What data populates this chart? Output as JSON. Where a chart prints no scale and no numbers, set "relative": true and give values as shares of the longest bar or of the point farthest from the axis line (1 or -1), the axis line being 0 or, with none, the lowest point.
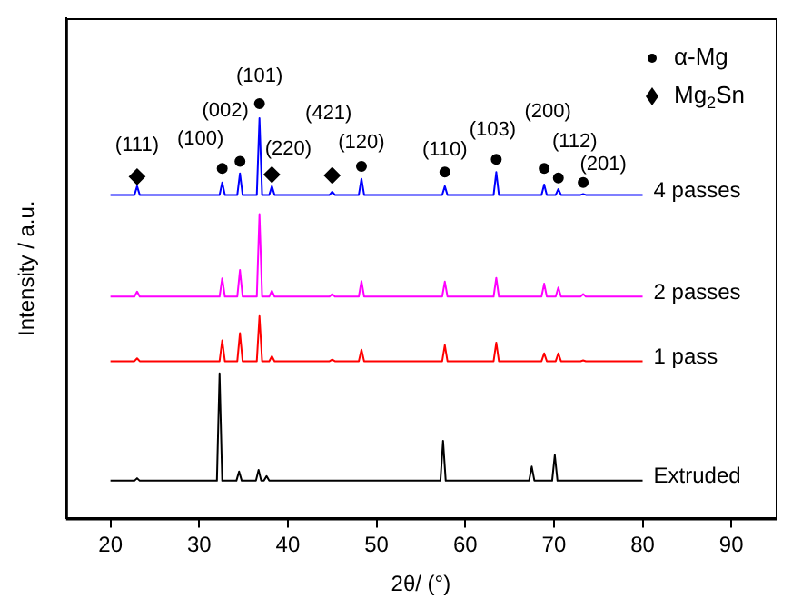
{
  "chart_data": {
    "type": "line",
    "relative": true,
    "xlabel": "2θ/ (°)",
    "ylabel": "Intensity / a.u.",
    "xlim": [
      15,
      95
    ],
    "xticks": [
      20,
      30,
      40,
      50,
      60,
      70,
      80,
      90
    ],
    "grid": false,
    "legend": "top right",
    "line_style": "solid",
    "series": [
      {
        "name": "Extruded",
        "color": "#000000",
        "x": [
          20,
          22.7,
          23,
          23.3,
          32,
          32.3,
          32.6,
          34.2,
          34.5,
          34.8,
          36.4,
          36.7,
          37,
          37.3,
          37.6,
          37.9,
          57.2,
          57.5,
          57.8,
          67.2,
          67.5,
          67.8,
          69.8,
          70.1,
          70.4,
          80
        ],
        "values": [
          0.091,
          0.091,
          0.097,
          0.091,
          0.091,
          0.35,
          0.091,
          0.091,
          0.113,
          0.091,
          0.091,
          0.117,
          0.091,
          0.091,
          0.102,
          0.091,
          0.091,
          0.187,
          0.091,
          0.091,
          0.125,
          0.091,
          0.091,
          0.153,
          0.091,
          0.091
        ]
      },
      {
        "name": "1 pass",
        "color": "#ff0000",
        "x": [
          20,
          22.7,
          23,
          23.3,
          32.3,
          32.6,
          32.9,
          34.3,
          34.6,
          34.9,
          36.5,
          36.8,
          37.1,
          37.9,
          38.2,
          38.5,
          44.7,
          45,
          45.3,
          48,
          48.3,
          48.6,
          57.4,
          57.7,
          58,
          63.2,
          63.5,
          63.8,
          68.6,
          68.9,
          69.2,
          70.2,
          70.5,
          70.8,
          73,
          73.3,
          73.6,
          80
        ],
        "values": [
          0.379,
          0.379,
          0.386,
          0.379,
          0.379,
          0.429,
          0.379,
          0.379,
          0.447,
          0.379,
          0.379,
          0.488,
          0.379,
          0.379,
          0.391,
          0.379,
          0.379,
          0.383,
          0.379,
          0.379,
          0.407,
          0.379,
          0.379,
          0.418,
          0.379,
          0.379,
          0.424,
          0.379,
          0.379,
          0.398,
          0.379,
          0.379,
          0.398,
          0.379,
          0.379,
          0.381,
          0.379,
          0.379
        ]
      },
      {
        "name": "2 passes",
        "color": "#ff00ff",
        "x": [
          20,
          22.7,
          23,
          23.3,
          32.3,
          32.6,
          32.9,
          34.3,
          34.6,
          34.9,
          36.5,
          36.8,
          37.1,
          37.9,
          38.2,
          38.5,
          44.7,
          45,
          45.3,
          48,
          48.3,
          48.6,
          57.4,
          57.7,
          58,
          63.2,
          63.5,
          63.8,
          68.6,
          68.9,
          69.2,
          70.2,
          70.5,
          70.8,
          73,
          73.3,
          73.6,
          80
        ],
        "values": [
          0.535,
          0.535,
          0.547,
          0.535,
          0.535,
          0.579,
          0.535,
          0.535,
          0.599,
          0.535,
          0.535,
          0.734,
          0.535,
          0.535,
          0.549,
          0.535,
          0.535,
          0.541,
          0.535,
          0.535,
          0.572,
          0.535,
          0.535,
          0.571,
          0.535,
          0.535,
          0.58,
          0.535,
          0.535,
          0.566,
          0.535,
          0.535,
          0.557,
          0.535,
          0.535,
          0.541,
          0.535,
          0.535
        ]
      },
      {
        "name": "4 passes",
        "color": "#0000ff",
        "x": [
          20,
          22.7,
          23,
          23.3,
          32.3,
          32.6,
          32.9,
          34.3,
          34.6,
          34.9,
          36.5,
          36.8,
          37.1,
          37.9,
          38.2,
          38.5,
          44.7,
          45,
          45.3,
          48,
          48.3,
          48.6,
          57.4,
          57.7,
          58,
          63.2,
          63.5,
          63.8,
          68.6,
          68.9,
          69.2,
          70.2,
          70.5,
          70.8,
          73,
          73.3,
          73.6,
          80
        ],
        "values": [
          0.78,
          0.78,
          0.801,
          0.78,
          0.78,
          0.81,
          0.78,
          0.78,
          0.832,
          0.78,
          0.78,
          0.965,
          0.78,
          0.78,
          0.801,
          0.78,
          0.78,
          0.788,
          0.78,
          0.78,
          0.819,
          0.78,
          0.78,
          0.801,
          0.78,
          0.78,
          0.835,
          0.78,
          0.78,
          0.805,
          0.78,
          0.78,
          0.794,
          0.78,
          0.78,
          0.782,
          0.78,
          0.78
        ]
      },
      {
        "name": "α-Mg",
        "type": "scatter",
        "marker": "circle",
        "color": "#000000",
        "x": [
          32.6,
          34.6,
          36.8,
          48.3,
          57.7,
          63.5,
          68.9,
          70.5,
          73.3
        ],
        "values": [
          0.844,
          0.861,
          1.0,
          0.849,
          0.835,
          0.866,
          0.844,
          0.821,
          0.81
        ]
      },
      {
        "name": "Mg$_{2}$Sn",
        "type": "scatter",
        "marker": "diamond",
        "color": "#000000",
        "x": [
          23,
          38.2,
          45
        ],
        "values": [
          0.824,
          0.829,
          0.827
        ]
      }
    ],
    "annotations": [
      "(111)",
      "(100)",
      "(002)",
      "(101)",
      "(220)",
      "(421)",
      "(120)",
      "(110)",
      "(103)",
      "(200)",
      "(112)",
      "(201)"
    ]
  }
}
